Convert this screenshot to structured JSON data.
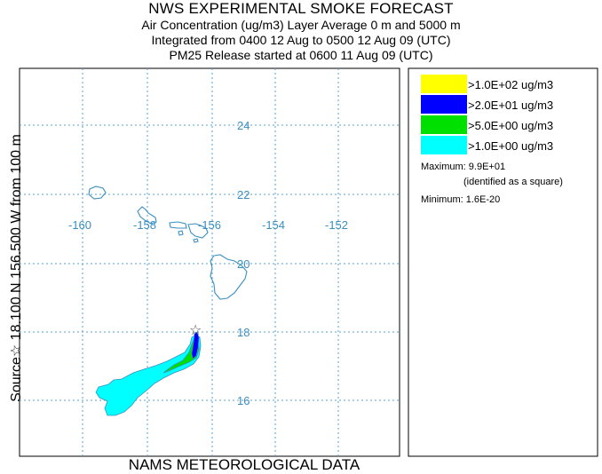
{
  "header": {
    "title": "NWS EXPERIMENTAL SMOKE FORECAST",
    "line1": "Air Concentration (ug/m3) Layer Average    0 m and  5000 m",
    "line2": "Integrated from 0400 12 Aug to 0500 12 Aug 09 (UTC)",
    "line3": "PM25 Release started at 0600 11 Aug 09 (UTC)"
  },
  "side_label": "Source☆ 18.100  N 156.500  W    from  100 m",
  "footer": "NAMS METEOROLOGICAL DATA",
  "map": {
    "lon_labels": [
      "-160",
      "-158",
      "-156",
      "-154",
      "-152"
    ],
    "lat_labels": [
      "24",
      "22",
      "20",
      "18",
      "16"
    ],
    "source_marker": "☆",
    "colors": {
      "yellow": "#ffff00",
      "blue": "#0000ff",
      "green": "#00e000",
      "cyan": "#00ffff",
      "coast": "#3a8fc0"
    }
  },
  "legend": {
    "entries": [
      {
        "label": ">1.0E+02 ug/m3",
        "color": "#ffff00"
      },
      {
        "label": ">2.0E+01 ug/m3",
        "color": "#0000ff"
      },
      {
        "label": ">5.0E+00 ug/m3",
        "color": "#00e000"
      },
      {
        "label": ">1.0E+00 ug/m3",
        "color": "#00ffff"
      }
    ],
    "maximum": "Maximum: 9.9E+01",
    "maximum_note": "(identified as a square)",
    "minimum": "Minimum: 1.6E-20"
  }
}
